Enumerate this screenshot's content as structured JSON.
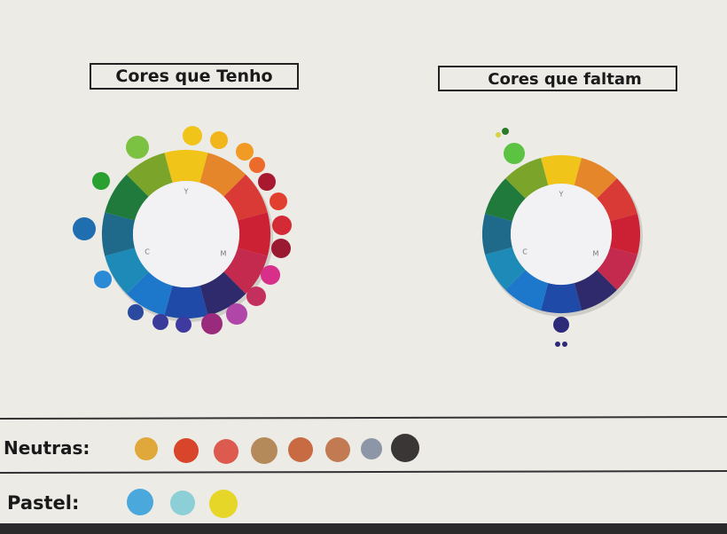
{
  "headings": [
    "Cores que Tenho",
    "Cores que faltam"
  ],
  "wheels": [
    {
      "labels": [
        "Y",
        "C",
        "M"
      ]
    },
    {
      "labels": [
        "Y",
        "C",
        "M"
      ]
    }
  ],
  "rows": [
    {
      "label": "Neutras:"
    },
    {
      "label": "Pastel:"
    }
  ]
}
